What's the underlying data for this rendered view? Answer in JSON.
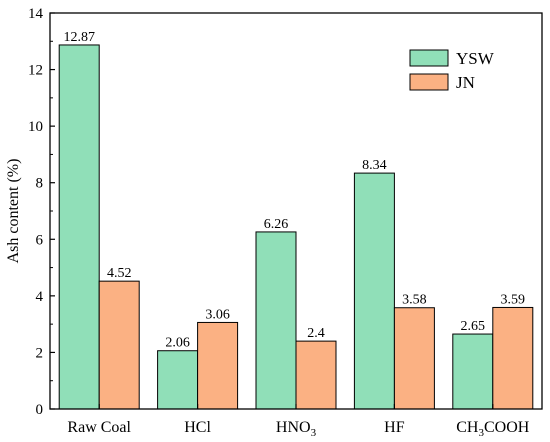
{
  "chart_data": {
    "type": "bar",
    "categories": [
      "Raw Coal",
      "HCl",
      "HNO3",
      "HF",
      "CH3COOH"
    ],
    "category_labels": [
      {
        "base": "Raw Coal",
        "sub": "",
        "tail": ""
      },
      {
        "base": "HCl",
        "sub": "",
        "tail": ""
      },
      {
        "base": "HNO",
        "sub": "3",
        "tail": ""
      },
      {
        "base": "HF",
        "sub": "",
        "tail": ""
      },
      {
        "base": "CH",
        "sub": "3",
        "tail": "COOH"
      }
    ],
    "series": [
      {
        "name": "YSW",
        "color": "#90dfb8",
        "values": [
          12.87,
          2.06,
          6.26,
          8.34,
          2.65
        ],
        "labels": [
          "12.87",
          "2.06",
          "6.26",
          "8.34",
          "2.65"
        ]
      },
      {
        "name": "JN",
        "color": "#fbb183",
        "values": [
          4.52,
          3.06,
          2.4,
          3.58,
          3.59
        ],
        "labels": [
          "4.52",
          "3.06",
          "2.4",
          "3.58",
          "3.59"
        ]
      }
    ],
    "xlabel": "",
    "ylabel": "Ash content (%)",
    "ylim": [
      0,
      14
    ],
    "yticks": [
      0,
      2,
      4,
      6,
      8,
      10,
      12,
      14
    ],
    "grid": false,
    "legend": "top-right"
  }
}
